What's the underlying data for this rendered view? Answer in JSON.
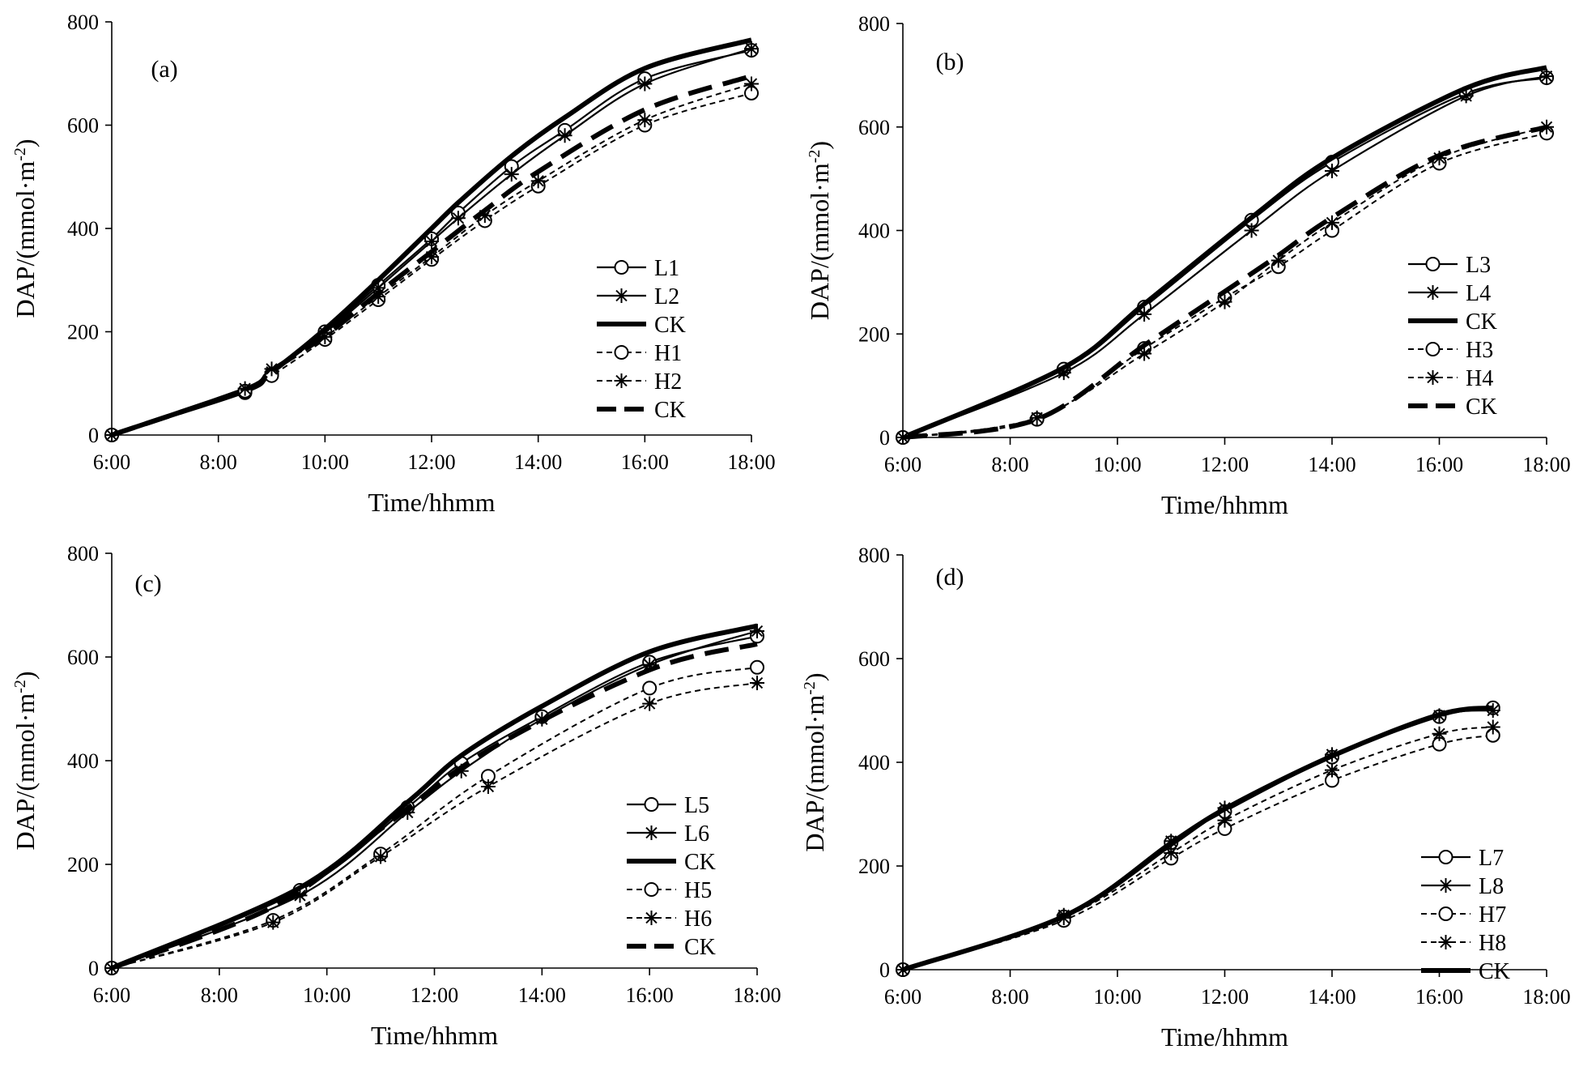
{
  "chart_data": [
    {
      "type": "line",
      "title": "(a)",
      "xlabel": "Time/hhmm",
      "ylabel": "DAP/(mmol·m⁻²)",
      "ylabel_parts": {
        "main": "DAP/(mmol·m",
        "sup": "-2",
        "end": ")"
      },
      "ylim": [
        0,
        800
      ],
      "xlim": [
        6,
        18
      ],
      "yticks": [
        "0",
        "200",
        "400",
        "600",
        "800"
      ],
      "xticks": [
        "6:00",
        "8:00",
        "10:00",
        "12:00",
        "14:00",
        "16:00",
        "18:00"
      ],
      "legend_position": "bottom-right",
      "series": [
        {
          "name": "L1",
          "style": "solid-circle",
          "x": [
            6,
            8.5,
            9,
            10,
            11,
            12,
            12.5,
            13.5,
            14.5,
            16,
            18
          ],
          "values": [
            0,
            82,
            118,
            200,
            290,
            380,
            430,
            520,
            590,
            690,
            745
          ]
        },
        {
          "name": "L2",
          "style": "solid-star",
          "x": [
            6,
            8.5,
            9,
            10,
            11,
            12,
            12.5,
            13.5,
            14.5,
            16,
            18
          ],
          "values": [
            0,
            85,
            122,
            198,
            285,
            375,
            420,
            505,
            580,
            680,
            748
          ]
        },
        {
          "name": "CK",
          "style": "thick-solid",
          "x": [
            6,
            8.5,
            9,
            10,
            11,
            12,
            12.5,
            13.5,
            14.5,
            16,
            18
          ],
          "values": [
            0,
            88,
            122,
            205,
            300,
            400,
            450,
            540,
            615,
            710,
            765
          ]
        },
        {
          "name": "H1",
          "style": "dashed-circle",
          "x": [
            6,
            8.5,
            9,
            10,
            11,
            12,
            13,
            14,
            16,
            18
          ],
          "values": [
            0,
            85,
            115,
            185,
            262,
            340,
            415,
            482,
            600,
            662
          ]
        },
        {
          "name": "H2",
          "style": "dashed-star",
          "x": [
            6,
            8.5,
            9,
            10,
            11,
            12,
            13,
            14,
            16,
            18
          ],
          "values": [
            0,
            90,
            128,
            190,
            268,
            345,
            425,
            492,
            610,
            680
          ]
        },
        {
          "name": "CK",
          "style": "thick-dashed",
          "x": [
            6,
            8.5,
            9,
            10,
            11,
            12,
            13,
            14,
            16,
            18
          ],
          "values": [
            0,
            88,
            125,
            192,
            275,
            355,
            435,
            510,
            630,
            695
          ]
        }
      ]
    },
    {
      "type": "line",
      "title": "(b)",
      "xlabel": "Time/hhmm",
      "ylabel": "DAP/(mmol·m⁻²)",
      "ylabel_parts": {
        "main": "DAP/(mmol·m",
        "sup": "-2",
        "end": ")"
      },
      "ylim": [
        0,
        800
      ],
      "xlim": [
        6,
        18
      ],
      "yticks": [
        "0",
        "200",
        "400",
        "600",
        "800"
      ],
      "xticks": [
        "6:00",
        "8:00",
        "10:00",
        "12:00",
        "14:00",
        "16:00",
        "18:00"
      ],
      "legend_position": "bottom-right",
      "series": [
        {
          "name": "L3",
          "style": "solid-circle",
          "x": [
            6,
            9,
            10.5,
            12.5,
            14,
            16.5,
            18
          ],
          "values": [
            0,
            132,
            252,
            420,
            532,
            665,
            695
          ]
        },
        {
          "name": "L4",
          "style": "solid-star",
          "x": [
            6,
            9,
            10.5,
            12.5,
            14,
            16.5,
            18
          ],
          "values": [
            0,
            125,
            238,
            400,
            515,
            660,
            698
          ]
        },
        {
          "name": "CK",
          "style": "thick-solid",
          "x": [
            6,
            9,
            10.5,
            12.5,
            14,
            16.5,
            18
          ],
          "values": [
            0,
            135,
            258,
            425,
            540,
            675,
            715
          ]
        },
        {
          "name": "H3",
          "style": "dashed-circle",
          "x": [
            6,
            8.5,
            10.5,
            12,
            13,
            14,
            16,
            18
          ],
          "values": [
            0,
            35,
            172,
            270,
            330,
            400,
            530,
            588
          ]
        },
        {
          "name": "H4",
          "style": "dashed-star",
          "x": [
            6,
            8.5,
            10.5,
            12,
            13,
            14,
            16,
            18
          ],
          "values": [
            0,
            38,
            162,
            262,
            342,
            415,
            540,
            600
          ]
        },
        {
          "name": "CK",
          "style": "thick-dashed",
          "x": [
            6,
            8.5,
            10.5,
            12,
            13,
            14,
            16,
            18
          ],
          "values": [
            0,
            35,
            178,
            282,
            352,
            425,
            545,
            600
          ]
        }
      ]
    },
    {
      "type": "line",
      "title": "(c)",
      "xlabel": "Time/hhmm",
      "ylabel": "DAP/(mmol·m⁻²)",
      "ylabel_parts": {
        "main": "DAP/(mmol·m",
        "sup": "-2",
        "end": ")"
      },
      "ylim": [
        0,
        800
      ],
      "xlim": [
        6,
        18
      ],
      "yticks": [
        "0",
        "200",
        "400",
        "600",
        "800"
      ],
      "xticks": [
        "6:00",
        "8:00",
        "10:00",
        "12:00",
        "14:00",
        "16:00",
        "18:00"
      ],
      "legend_position": "bottom-right",
      "series": [
        {
          "name": "L5",
          "style": "solid-circle",
          "x": [
            6,
            9.5,
            11.5,
            12.5,
            14,
            16,
            18
          ],
          "values": [
            0,
            150,
            310,
            395,
            485,
            590,
            640
          ]
        },
        {
          "name": "L6",
          "style": "solid-star",
          "x": [
            6,
            9.5,
            11.5,
            12.5,
            14,
            16,
            18
          ],
          "values": [
            0,
            140,
            300,
            380,
            480,
            585,
            650
          ]
        },
        {
          "name": "CK",
          "style": "thick-solid",
          "x": [
            6,
            9.5,
            11.5,
            12.5,
            14,
            16,
            18
          ],
          "values": [
            0,
            155,
            320,
            410,
            505,
            610,
            660
          ]
        },
        {
          "name": "H5",
          "style": "dashed-circle",
          "x": [
            6,
            9,
            11,
            13,
            16,
            18
          ],
          "values": [
            0,
            92,
            220,
            370,
            540,
            580
          ]
        },
        {
          "name": "H6",
          "style": "dashed-star",
          "x": [
            6,
            9,
            11,
            13,
            16,
            18
          ],
          "values": [
            0,
            88,
            215,
            350,
            510,
            550
          ]
        },
        {
          "name": "CK",
          "style": "thick-dashed",
          "x": [
            6,
            9,
            11,
            13,
            16,
            18
          ],
          "values": [
            0,
            118,
            268,
            420,
            575,
            625
          ]
        }
      ]
    },
    {
      "type": "line",
      "title": "(d)",
      "xlabel": "Time/hhmm",
      "ylabel": "DAP/(mmol·m⁻²)",
      "ylabel_parts": {
        "main": "DAP/(mmol·m",
        "sup": "-2",
        "end": ")"
      },
      "ylim": [
        0,
        800
      ],
      "xlim": [
        6,
        18
      ],
      "yticks": [
        "0",
        "200",
        "400",
        "600",
        "800"
      ],
      "xticks": [
        "6:00",
        "8:00",
        "10:00",
        "12:00",
        "14:00",
        "16:00",
        "18:00"
      ],
      "legend_position": "bottom-right",
      "series": [
        {
          "name": "L7",
          "style": "solid-circle",
          "x": [
            6,
            9,
            11,
            12,
            14,
            16,
            17
          ],
          "values": [
            0,
            102,
            245,
            305,
            410,
            488,
            505
          ]
        },
        {
          "name": "L8",
          "style": "solid-star",
          "x": [
            6,
            9,
            11,
            12,
            14,
            16,
            17
          ],
          "values": [
            0,
            105,
            248,
            312,
            415,
            490,
            500
          ]
        },
        {
          "name": "H7",
          "style": "dashed-circle",
          "x": [
            6,
            9,
            11,
            12,
            14,
            16,
            17
          ],
          "values": [
            0,
            95,
            215,
            272,
            365,
            435,
            452
          ]
        },
        {
          "name": "H8",
          "style": "dashed-star",
          "x": [
            6,
            9,
            11,
            12,
            14,
            16,
            17
          ],
          "values": [
            0,
            100,
            225,
            288,
            385,
            455,
            468
          ]
        },
        {
          "name": "CK",
          "style": "thick-solid",
          "x": [
            6,
            9,
            11,
            12,
            14,
            16,
            17
          ],
          "values": [
            0,
            103,
            242,
            310,
            412,
            492,
            505
          ]
        }
      ]
    }
  ]
}
